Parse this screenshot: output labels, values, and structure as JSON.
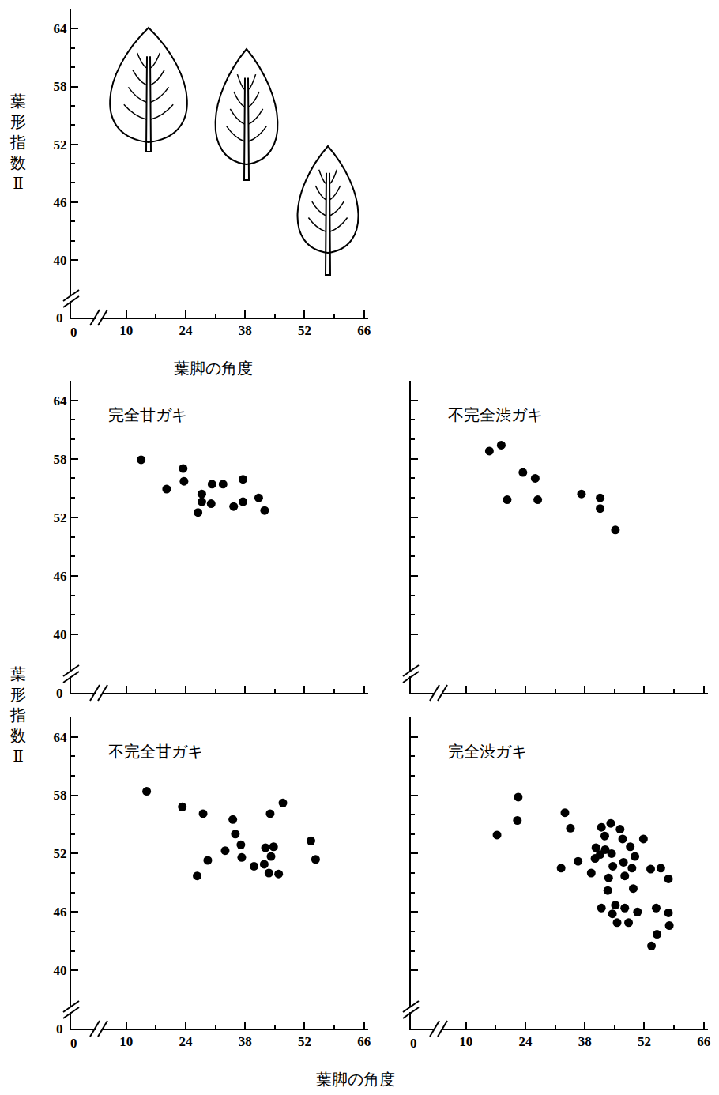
{
  "chart_data": [
    {
      "type": "blank",
      "xlabel": "葉脚の角度",
      "ylabel": "葉形指数Ⅱ",
      "xlim": [
        -3,
        67
      ],
      "ylim": [
        34,
        66
      ],
      "xticks": [
        10,
        24,
        38,
        52,
        66
      ],
      "yticks": [
        40,
        46,
        52,
        58,
        64
      ],
      "grid": false,
      "tick_labels": true,
      "annotations": [
        {
          "text": "0",
          "axis": "x"
        },
        {
          "text": "0",
          "axis": "y"
        }
      ]
    },
    {
      "type": "scatter",
      "title": "完全甘ガキ",
      "x": [
        13.5,
        19.5,
        23.4,
        23.6,
        26.9,
        27.8,
        27.8,
        30.2,
        30.0,
        32.8,
        35.3,
        37.5,
        37.5,
        41.2,
        42.6
      ],
      "values": [
        57.9,
        54.9,
        57.0,
        55.7,
        52.5,
        54.4,
        53.6,
        55.4,
        53.4,
        55.4,
        53.1,
        55.9,
        53.6,
        54.0,
        52.7
      ],
      "color": "#000000",
      "marker": "circle",
      "xlim": [
        -3,
        67
      ],
      "ylim": [
        34,
        66
      ],
      "xticks": [
        10,
        24,
        38,
        52,
        66
      ],
      "yticks": [
        40,
        46,
        52,
        58,
        64
      ],
      "grid": false,
      "tick_labels": "y",
      "annotations": [
        {
          "text": "0",
          "axis": "y"
        }
      ]
    },
    {
      "type": "scatter",
      "title": "不完全渋ガキ",
      "x": [
        15.5,
        18.3,
        19.7,
        23.4,
        26.3,
        26.9,
        37.2,
        41.6,
        41.6,
        45.2
      ],
      "values": [
        58.8,
        59.4,
        53.8,
        56.6,
        56.0,
        53.8,
        54.4,
        54.0,
        52.9,
        50.7
      ],
      "color": "#000000",
      "marker": "circle",
      "xlim": [
        -3,
        67
      ],
      "ylim": [
        34,
        66
      ],
      "xticks": [
        10,
        24,
        38,
        52,
        66
      ],
      "yticks": [
        40,
        46,
        52,
        58,
        64
      ],
      "grid": false,
      "tick_labels": false
    },
    {
      "type": "scatter",
      "title": "不完全甘ガキ",
      "xlabel": "葉脚の角度",
      "ylabel": "葉形指数Ⅱ",
      "x": [
        14.8,
        23.2,
        28.1,
        26.7,
        29.2,
        33.3,
        35.1,
        35.7,
        37.0,
        37.2,
        40.1,
        42.5,
        42.8,
        43.9,
        43.6,
        44.1,
        44.7,
        45.9,
        46.9,
        53.5,
        54.6
      ],
      "values": [
        58.4,
        56.8,
        56.1,
        49.7,
        51.3,
        52.3,
        55.5,
        54.0,
        52.9,
        51.6,
        50.7,
        50.9,
        52.6,
        56.1,
        50.0,
        51.7,
        52.7,
        49.9,
        57.2,
        53.3,
        51.4
      ],
      "color": "#000000",
      "marker": "circle",
      "xlim": [
        -3,
        67
      ],
      "ylim": [
        34,
        66
      ],
      "xticks": [
        10,
        24,
        38,
        52,
        66
      ],
      "yticks": [
        40,
        46,
        52,
        58,
        64
      ],
      "grid": false,
      "tick_labels": true,
      "annotations": [
        {
          "text": "0",
          "axis": "x"
        },
        {
          "text": "0",
          "axis": "y"
        }
      ]
    },
    {
      "type": "scatter",
      "title": "完全渋ガキ",
      "x": [
        17.3,
        22.3,
        22.1,
        33.3,
        34.6,
        32.4,
        36.4,
        39.5,
        40.4,
        40.6,
        41.9,
        41.6,
        42.7,
        42.8,
        41.9,
        43.4,
        43.6,
        44.1,
        44.3,
        44.6,
        44.5,
        45.6,
        45.2,
        46.3,
        46.9,
        47.1,
        47.4,
        47.4,
        48.3,
        48.7,
        49.1,
        49.4,
        50.4,
        49.8,
        51.8,
        53.5,
        53.7,
        54.8,
        55.0,
        55.9,
        57.7,
        57.7,
        57.9
      ],
      "values": [
        53.9,
        57.8,
        55.4,
        56.2,
        54.6,
        50.5,
        51.2,
        50.0,
        51.5,
        52.6,
        54.7,
        51.9,
        53.8,
        52.4,
        46.4,
        48.2,
        49.5,
        55.1,
        52.0,
        50.7,
        45.8,
        44.9,
        46.7,
        54.5,
        53.5,
        51.1,
        49.7,
        46.4,
        44.9,
        52.7,
        50.5,
        48.4,
        46.0,
        51.7,
        53.5,
        50.4,
        42.5,
        46.4,
        43.7,
        50.5,
        49.4,
        45.9,
        44.6
      ],
      "color": "#000000",
      "marker": "circle",
      "xlim": [
        -3,
        67
      ],
      "ylim": [
        34,
        66
      ],
      "xticks": [
        10,
        24,
        38,
        52,
        66
      ],
      "yticks": [
        40,
        46,
        52,
        58,
        64
      ],
      "grid": false,
      "tick_labels": "x",
      "annotations": [
        {
          "text": "0",
          "axis": "x"
        }
      ]
    }
  ]
}
